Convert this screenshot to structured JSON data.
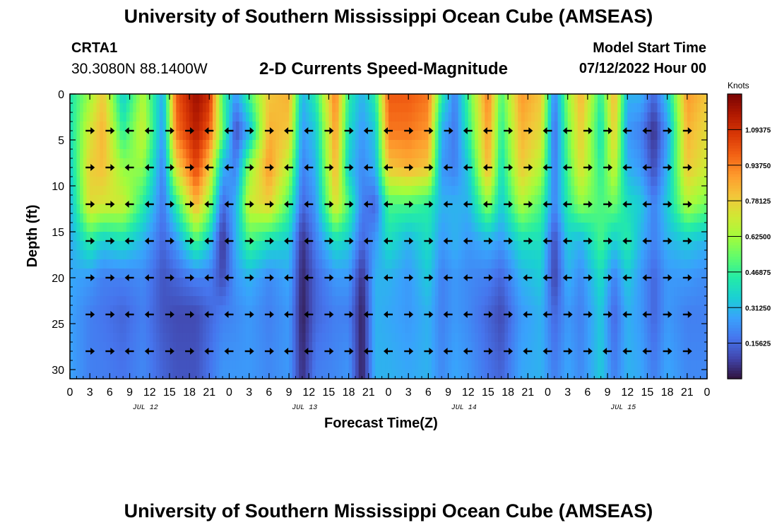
{
  "header": {
    "title": "University of Southern Mississippi Ocean Cube (AMSEAS)",
    "station": "CRTA1",
    "coords": "30.3080N  88.1400W",
    "subtitle": "2-D Currents Speed-Magnitude",
    "model_start_label": "Model Start Time",
    "model_start_value": "07/12/2022 Hour 00"
  },
  "footer": {
    "title": "University of Southern Mississippi Ocean Cube (AMSEAS)"
  },
  "chart_data": {
    "type": "heatmap",
    "title": "2-D Currents Speed-Magnitude",
    "xlabel": "Forecast Time(Z)",
    "ylabel": "Depth (ft)",
    "x_ticks": [
      "0",
      "3",
      "6",
      "9",
      "12",
      "15",
      "18",
      "21",
      "0",
      "3",
      "6",
      "9",
      "12",
      "15",
      "18",
      "21",
      "0",
      "3",
      "6",
      "9",
      "12",
      "15",
      "18",
      "21",
      "0",
      "3",
      "6",
      "9",
      "12",
      "15",
      "18",
      "21",
      "0"
    ],
    "x_day_labels": [
      "JUL 12",
      "JUL 13",
      "JUL 14",
      "JUL 15"
    ],
    "xlim_hours": [
      0,
      96
    ],
    "y_ticks": [
      0,
      5,
      10,
      15,
      20,
      25,
      30
    ],
    "ylim": [
      0,
      31
    ],
    "colorbar": {
      "unit": "Knots",
      "range": [
        0,
        1.25
      ],
      "tick_values": [
        0.15625,
        0.3125,
        0.46875,
        0.625,
        0.78125,
        0.9375,
        1.09375
      ],
      "tick_labels": [
        "0.15625",
        "0.31250",
        "0.46875",
        "0.62500",
        "0.78125",
        "0.93750",
        "1.09375"
      ],
      "colors": [
        "#30123b",
        "#4145ab",
        "#4675ed",
        "#39a2fc",
        "#1bcfd4",
        "#24eca6",
        "#61fc6c",
        "#a4fc3b",
        "#d1e834",
        "#f3c63a",
        "#fe9b2d",
        "#f36315",
        "#d93806",
        "#b11901",
        "#7a0403"
      ]
    },
    "vector_depths_ft": [
      4,
      8,
      12,
      16,
      20,
      24,
      28
    ],
    "vector_interval_hours": 3,
    "speed_profiles": [
      {
        "h": 0,
        "v": [
          0.42,
          0.4,
          0.35,
          0.3,
          0.28,
          0.28,
          0.27,
          0.27
        ]
      },
      {
        "h": 3,
        "v": [
          0.62,
          0.72,
          0.78,
          0.75,
          0.45,
          0.25,
          0.2,
          0.2
        ]
      },
      {
        "h": 5,
        "v": [
          0.8,
          0.85,
          0.82,
          0.72,
          0.35,
          0.2,
          0.18,
          0.2
        ]
      },
      {
        "h": 8,
        "v": [
          0.35,
          0.45,
          0.6,
          0.7,
          0.4,
          0.2,
          0.15,
          0.18
        ]
      },
      {
        "h": 11,
        "v": [
          0.65,
          0.7,
          0.6,
          0.45,
          0.3,
          0.22,
          0.2,
          0.22
        ]
      },
      {
        "h": 14,
        "v": [
          0.28,
          0.25,
          0.2,
          0.18,
          0.15,
          0.12,
          0.12,
          0.15
        ]
      },
      {
        "h": 16,
        "v": [
          1.0,
          0.95,
          0.75,
          0.45,
          0.25,
          0.15,
          0.1,
          0.12
        ]
      },
      {
        "h": 19,
        "v": [
          1.2,
          1.15,
          1.05,
          0.85,
          0.5,
          0.2,
          0.1,
          0.12
        ]
      },
      {
        "h": 21,
        "v": [
          1.1,
          1.0,
          0.8,
          0.6,
          0.35,
          0.2,
          0.15,
          0.18
        ]
      },
      {
        "h": 23,
        "v": [
          0.5,
          0.55,
          0.3,
          0.15,
          0.05,
          0.1,
          0.2,
          0.25
        ]
      },
      {
        "h": 25,
        "v": [
          0.25,
          0.1,
          0.2,
          0.3,
          0.3,
          0.25,
          0.22,
          0.25
        ]
      },
      {
        "h": 27,
        "v": [
          0.5,
          0.3,
          0.6,
          0.7,
          0.5,
          0.3,
          0.25,
          0.25
        ]
      },
      {
        "h": 30,
        "v": [
          0.8,
          0.85,
          0.9,
          0.78,
          0.4,
          0.22,
          0.2,
          0.22
        ]
      },
      {
        "h": 33,
        "v": [
          0.85,
          0.8,
          0.65,
          0.5,
          0.35,
          0.28,
          0.25,
          0.25
        ]
      },
      {
        "h": 35,
        "v": [
          0.3,
          0.25,
          0.2,
          0.15,
          0.05,
          0.03,
          0.02,
          0.05
        ]
      },
      {
        "h": 37,
        "v": [
          0.45,
          0.35,
          0.3,
          0.25,
          0.2,
          0.15,
          0.15,
          0.2
        ]
      },
      {
        "h": 40,
        "v": [
          0.95,
          0.9,
          0.85,
          0.75,
          0.4,
          0.25,
          0.2,
          0.22
        ]
      },
      {
        "h": 42,
        "v": [
          0.45,
          0.4,
          0.35,
          0.5,
          0.35,
          0.25,
          0.2,
          0.25
        ]
      },
      {
        "h": 44,
        "v": [
          0.3,
          0.25,
          0.22,
          0.2,
          0.15,
          0.05,
          0.02,
          0.02
        ]
      },
      {
        "h": 46,
        "v": [
          0.45,
          0.35,
          0.3,
          0.15,
          0.25,
          0.3,
          0.3,
          0.3
        ]
      },
      {
        "h": 48,
        "v": [
          1.0,
          0.95,
          0.8,
          0.5,
          0.4,
          0.3,
          0.28,
          0.3
        ]
      },
      {
        "h": 51,
        "v": [
          1.0,
          0.95,
          0.85,
          0.5,
          0.3,
          0.25,
          0.25,
          0.28
        ]
      },
      {
        "h": 54,
        "v": [
          0.95,
          0.9,
          0.8,
          0.45,
          0.4,
          0.35,
          0.3,
          0.3
        ]
      },
      {
        "h": 56,
        "v": [
          0.45,
          0.3,
          0.25,
          0.3,
          0.25,
          0.2,
          0.2,
          0.22
        ]
      },
      {
        "h": 58,
        "v": [
          0.2,
          0.18,
          0.2,
          0.3,
          0.3,
          0.25,
          0.25,
          0.28
        ]
      },
      {
        "h": 60,
        "v": [
          0.5,
          0.45,
          0.35,
          0.3,
          0.25,
          0.22,
          0.22,
          0.25
        ]
      },
      {
        "h": 63,
        "v": [
          0.95,
          0.9,
          0.85,
          0.6,
          0.3,
          0.2,
          0.15,
          0.18
        ]
      },
      {
        "h": 65,
        "v": [
          0.5,
          0.45,
          0.4,
          0.35,
          0.25,
          0.15,
          0.1,
          0.15
        ]
      },
      {
        "h": 68,
        "v": [
          0.9,
          0.85,
          0.8,
          0.65,
          0.4,
          0.3,
          0.25,
          0.28
        ]
      },
      {
        "h": 71,
        "v": [
          0.8,
          0.75,
          0.65,
          0.5,
          0.4,
          0.35,
          0.3,
          0.3
        ]
      },
      {
        "h": 73,
        "v": [
          0.2,
          0.15,
          0.18,
          0.2,
          0.1,
          0.08,
          0.15,
          0.2
        ]
      },
      {
        "h": 75,
        "v": [
          0.6,
          0.55,
          0.5,
          0.45,
          0.35,
          0.3,
          0.25,
          0.28
        ]
      },
      {
        "h": 77,
        "v": [
          0.85,
          0.8,
          0.75,
          0.6,
          0.3,
          0.22,
          0.2,
          0.22
        ]
      },
      {
        "h": 80,
        "v": [
          0.45,
          0.4,
          0.45,
          0.5,
          0.5,
          0.4,
          0.35,
          0.35
        ]
      },
      {
        "h": 82,
        "v": [
          0.85,
          0.8,
          0.7,
          0.55,
          0.35,
          0.2,
          0.15,
          0.2
        ]
      },
      {
        "h": 84,
        "v": [
          0.3,
          0.25,
          0.3,
          0.4,
          0.45,
          0.35,
          0.3,
          0.3
        ]
      },
      {
        "h": 86,
        "v": [
          0.3,
          0.2,
          0.25,
          0.35,
          0.3,
          0.25,
          0.25,
          0.28
        ]
      },
      {
        "h": 88,
        "v": [
          0.15,
          0.05,
          0.1,
          0.2,
          0.2,
          0.15,
          0.15,
          0.2
        ]
      },
      {
        "h": 90,
        "v": [
          0.35,
          0.25,
          0.3,
          0.35,
          0.3,
          0.25,
          0.25,
          0.28
        ]
      },
      {
        "h": 93,
        "v": [
          0.9,
          0.85,
          0.8,
          0.65,
          0.35,
          0.25,
          0.2,
          0.22
        ]
      },
      {
        "h": 96,
        "v": [
          0.8,
          0.75,
          0.7,
          0.55,
          0.3,
          0.22,
          0.2,
          0.22
        ]
      }
    ],
    "profile_depths_ft": [
      0,
      4,
      8,
      12,
      16,
      20,
      24,
      31
    ]
  }
}
